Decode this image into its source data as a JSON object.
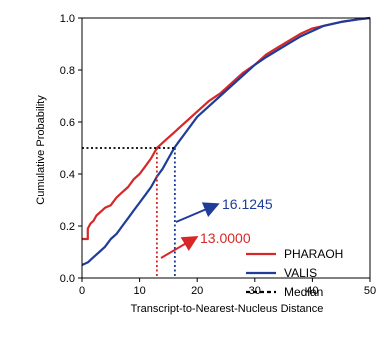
{
  "chart_data": {
    "type": "line",
    "xlabel": "Transcript-to-Nearest-Nucleus Distance",
    "ylabel": "Cumulative Probability",
    "xlim": [
      0,
      50
    ],
    "ylim": [
      0,
      1.0
    ],
    "x_ticks": [
      "0",
      "10",
      "20",
      "30",
      "40",
      "50"
    ],
    "y_ticks": [
      "0.0",
      "0.2",
      "0.4",
      "0.6",
      "0.8",
      "1.0"
    ],
    "x_tick_values": [
      0,
      10,
      20,
      30,
      40,
      50
    ],
    "y_tick_values": [
      0,
      0.2,
      0.4,
      0.6,
      0.8,
      1.0
    ],
    "grid": false,
    "legend_position": "lower-right",
    "series": [
      {
        "name": "PHARAOH",
        "color": "#d62828",
        "x": [
          0,
          0,
          1,
          1,
          1.5,
          2,
          2.5,
          3,
          3.5,
          4,
          4.5,
          5,
          6,
          7,
          8,
          9,
          10,
          11,
          12,
          13,
          14,
          15,
          16,
          17,
          18,
          20,
          22,
          24,
          26,
          28,
          30,
          32,
          35,
          38,
          40,
          42,
          45,
          48,
          50
        ],
        "y": [
          0.15,
          0.15,
          0.15,
          0.19,
          0.21,
          0.22,
          0.24,
          0.25,
          0.26,
          0.27,
          0.275,
          0.28,
          0.31,
          0.33,
          0.35,
          0.38,
          0.4,
          0.43,
          0.46,
          0.5,
          0.52,
          0.54,
          0.56,
          0.58,
          0.6,
          0.64,
          0.68,
          0.71,
          0.75,
          0.79,
          0.82,
          0.86,
          0.9,
          0.94,
          0.96,
          0.97,
          0.985,
          0.995,
          1.0
        ]
      },
      {
        "name": "VALIS",
        "color": "#1f3c9a",
        "x": [
          0,
          1,
          2,
          3,
          4,
          5,
          6,
          7,
          8,
          9,
          10,
          11,
          12,
          13,
          14,
          15,
          16,
          17,
          18,
          20,
          22,
          24,
          26,
          28,
          30,
          32,
          35,
          38,
          40,
          42,
          45,
          48,
          50
        ],
        "y": [
          0.05,
          0.06,
          0.08,
          0.1,
          0.12,
          0.15,
          0.17,
          0.2,
          0.23,
          0.26,
          0.29,
          0.32,
          0.35,
          0.39,
          0.42,
          0.46,
          0.5,
          0.53,
          0.56,
          0.62,
          0.66,
          0.7,
          0.74,
          0.78,
          0.82,
          0.85,
          0.89,
          0.93,
          0.95,
          0.97,
          0.985,
          0.995,
          1.0
        ]
      }
    ],
    "median_label": "Median",
    "medians": [
      {
        "series": "PHARAOH",
        "x": 13.0,
        "label": "13.0000",
        "color": "#d62828"
      },
      {
        "series": "VALIS",
        "x": 16.1245,
        "label": "16.1245",
        "color": "#1f3c9a"
      }
    ],
    "median_y": 0.5
  }
}
